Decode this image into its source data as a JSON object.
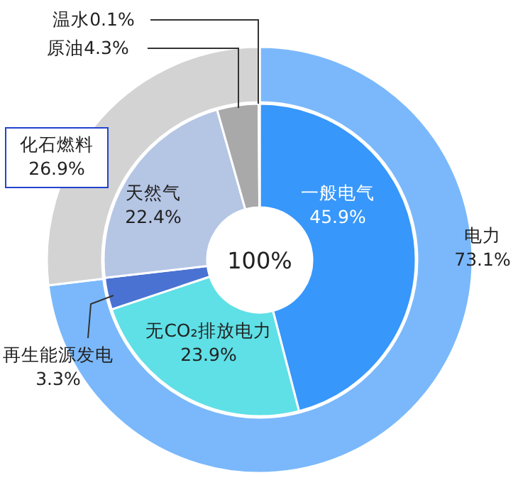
{
  "chart_data": [
    {
      "type": "donut",
      "categories": [
        "电力",
        "化石燃料"
      ],
      "values": [
        73.1,
        26.9
      ],
      "colors": [
        "#7ab8fb",
        "#d3d3d3"
      ],
      "value_labels": [
        "73.1%",
        "26.9%"
      ]
    },
    {
      "type": "donut",
      "categories": [
        "一般电气",
        "无CO₂排放电力",
        "再生能源发电",
        "天然气",
        "原油",
        "温水"
      ],
      "values": [
        45.9,
        23.9,
        3.3,
        22.4,
        4.3,
        0.1
      ],
      "colors": [
        "#3797fb",
        "#5ee0e6",
        "#4a72d2",
        "#b5c5e4",
        "#a9a9a9",
        "#e2e2e2"
      ],
      "value_labels": [
        "45.9%",
        "23.9%",
        "3.3%",
        "22.4%",
        "4.3%",
        "0.1%"
      ],
      "annotations": [
        "100%"
      ]
    }
  ]
}
